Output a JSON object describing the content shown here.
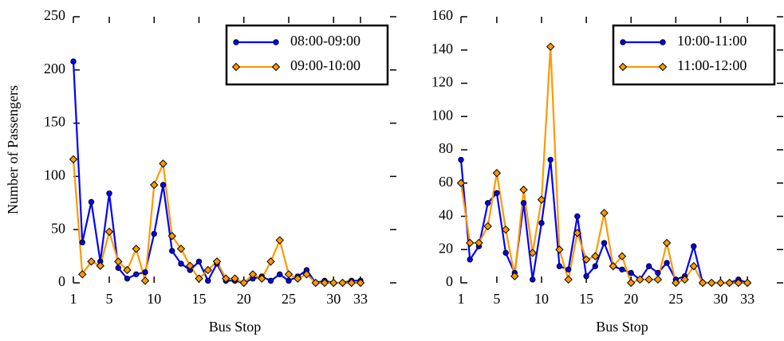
{
  "chart_data": [
    {
      "type": "line",
      "xlabel": "Bus Stop",
      "ylabel": "Number of Passengers",
      "x": [
        1,
        2,
        3,
        4,
        5,
        6,
        7,
        8,
        9,
        10,
        11,
        12,
        13,
        14,
        15,
        16,
        17,
        18,
        19,
        20,
        21,
        22,
        23,
        24,
        25,
        26,
        27,
        28,
        29,
        30,
        31,
        32,
        33
      ],
      "xlim": [
        1,
        37
      ],
      "xticks": [
        1,
        5,
        10,
        15,
        20,
        25,
        30,
        33
      ],
      "ylim": [
        0,
        250
      ],
      "yticks": [
        0,
        50,
        100,
        150,
        200,
        250
      ],
      "legend": "upper right",
      "series": [
        {
          "name": "08:00-09:00",
          "color": "#0000ff",
          "marker": "circle",
          "values": [
            208,
            38,
            76,
            20,
            84,
            14,
            4,
            8,
            10,
            46,
            92,
            30,
            18,
            12,
            20,
            2,
            18,
            2,
            2,
            0,
            4,
            6,
            2,
            8,
            2,
            6,
            12,
            0,
            2,
            0,
            0,
            2,
            2
          ]
        },
        {
          "name": "09:00-10:00",
          "color": "#ff9900",
          "marker": "diamond",
          "values": [
            116,
            8,
            20,
            16,
            48,
            20,
            12,
            32,
            2,
            92,
            112,
            44,
            32,
            16,
            4,
            12,
            20,
            4,
            4,
            0,
            8,
            4,
            20,
            40,
            8,
            4,
            8,
            0,
            0,
            0,
            0,
            0,
            0
          ]
        }
      ]
    },
    {
      "type": "line",
      "xlabel": "Bus Stop",
      "x": [
        1,
        2,
        3,
        4,
        5,
        6,
        7,
        8,
        9,
        10,
        11,
        12,
        13,
        14,
        15,
        16,
        17,
        18,
        19,
        20,
        21,
        22,
        23,
        24,
        25,
        26,
        27,
        28,
        29,
        30,
        31,
        32,
        33
      ],
      "xlim": [
        1,
        37
      ],
      "xticks": [
        1,
        5,
        10,
        15,
        20,
        25,
        30,
        33
      ],
      "ylim": [
        0,
        160
      ],
      "yticks": [
        0,
        20,
        40,
        60,
        80,
        100,
        120,
        140,
        160
      ],
      "legend": "upper right",
      "series": [
        {
          "name": "10:00-11:00",
          "color": "#0000ff",
          "marker": "circle",
          "values": [
            74,
            14,
            22,
            48,
            54,
            18,
            6,
            48,
            2,
            36,
            74,
            10,
            8,
            40,
            4,
            10,
            24,
            10,
            8,
            6,
            2,
            10,
            6,
            12,
            2,
            4,
            22,
            0,
            0,
            0,
            0,
            2,
            0
          ]
        },
        {
          "name": "11:00-12:00",
          "color": "#ff9900",
          "marker": "diamond",
          "values": [
            60,
            24,
            24,
            34,
            66,
            32,
            4,
            56,
            18,
            50,
            142,
            20,
            2,
            30,
            14,
            16,
            42,
            10,
            16,
            0,
            2,
            2,
            2,
            24,
            0,
            2,
            10,
            0,
            0,
            0,
            0,
            0,
            0
          ]
        }
      ]
    }
  ]
}
